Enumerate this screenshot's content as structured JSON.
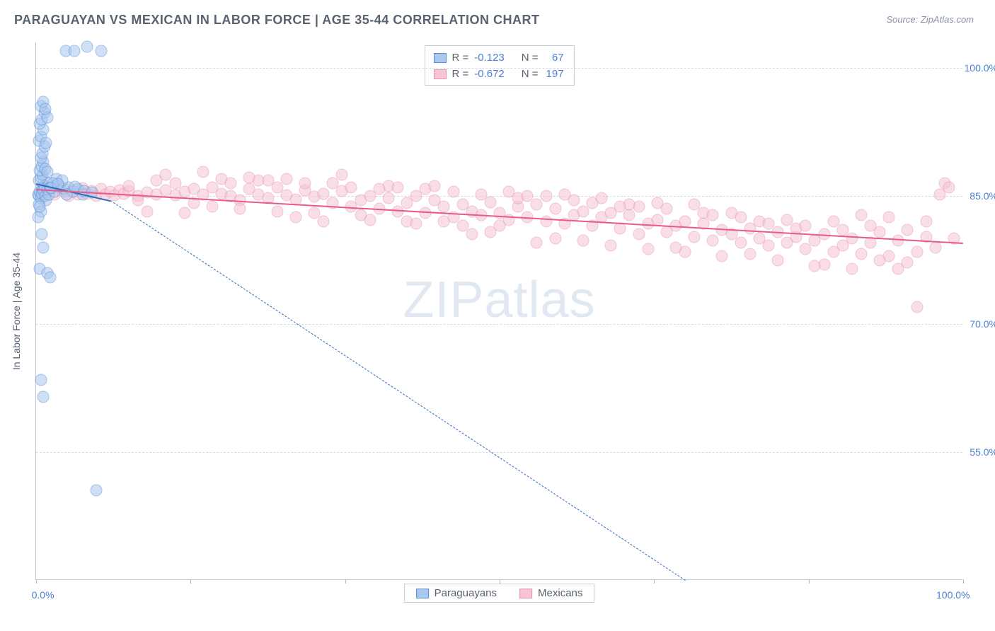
{
  "title": "PARAGUAYAN VS MEXICAN IN LABOR FORCE | AGE 35-44 CORRELATION CHART",
  "source": "Source: ZipAtlas.com",
  "watermark_a": "ZIP",
  "watermark_b": "atlas",
  "ylabel": "In Labor Force | Age 35-44",
  "chart": {
    "type": "scatter",
    "xlim": [
      0,
      100
    ],
    "ylim": [
      40,
      103
    ],
    "background_color": "#ffffff",
    "grid_color": "#d8dce2",
    "axis_color": "#c0c5cf",
    "tick_color": "#b0b5bf",
    "xtick_positions": [
      0,
      16.67,
      33.33,
      50,
      66.67,
      83.33,
      100
    ],
    "xtick_labels": {
      "0": "0.0%",
      "100": "100.0%"
    },
    "ytick_positions": [
      55,
      70,
      85,
      100
    ],
    "ytick_labels": {
      "55": "55.0%",
      "70": "70.0%",
      "85": "85.0%",
      "100": "100.0%"
    },
    "label_color": "#4a7fd4",
    "axis_label_color": "#5a6270",
    "title_color": "#5a6270",
    "title_fontsize": 18,
    "label_fontsize": 14,
    "marker_radius": 8.5,
    "marker_opacity": 0.55
  },
  "series": {
    "paraguayans": {
      "label": "Paraguayans",
      "r": "-0.123",
      "n": "67",
      "fill": "#a9c7ef",
      "stroke": "#5a8fd6",
      "trend_color": "#2f6bbd",
      "trend_solid": {
        "x1": 0,
        "y1": 86.5,
        "x2": 8,
        "y2": 84.5
      },
      "trend_dashed": {
        "x1": 8,
        "y1": 84.5,
        "x2": 70,
        "y2": 40
      },
      "points": [
        [
          0.2,
          85.2
        ],
        [
          0.3,
          85.0
        ],
        [
          0.4,
          85.5
        ],
        [
          0.5,
          84.8
        ],
        [
          0.6,
          85.3
        ],
        [
          0.7,
          86.0
        ],
        [
          0.8,
          85.7
        ],
        [
          0.9,
          86.2
        ],
        [
          1.0,
          85.0
        ],
        [
          1.1,
          84.5
        ],
        [
          1.2,
          85.8
        ],
        [
          1.3,
          86.5
        ],
        [
          1.4,
          85.2
        ],
        [
          1.5,
          86.0
        ],
        [
          0.3,
          86.8
        ],
        [
          0.5,
          87.2
        ],
        [
          0.7,
          87.5
        ],
        [
          0.4,
          88.0
        ],
        [
          0.6,
          88.5
        ],
        [
          0.8,
          89.0
        ],
        [
          1.0,
          88.2
        ],
        [
          1.2,
          87.8
        ],
        [
          0.5,
          89.5
        ],
        [
          0.7,
          90.0
        ],
        [
          0.9,
          90.8
        ],
        [
          0.3,
          91.5
        ],
        [
          0.5,
          92.0
        ],
        [
          0.8,
          92.8
        ],
        [
          1.1,
          91.2
        ],
        [
          0.4,
          93.5
        ],
        [
          0.6,
          94.0
        ],
        [
          0.9,
          94.8
        ],
        [
          1.2,
          94.2
        ],
        [
          0.5,
          95.5
        ],
        [
          0.8,
          96.0
        ],
        [
          1.0,
          95.2
        ],
        [
          3.2,
          102.0
        ],
        [
          4.1,
          102.0
        ],
        [
          5.5,
          102.5
        ],
        [
          7.0,
          102.0
        ],
        [
          0.3,
          84.0
        ],
        [
          0.5,
          83.2
        ],
        [
          0.2,
          82.5
        ],
        [
          0.4,
          83.8
        ],
        [
          0.6,
          80.5
        ],
        [
          0.8,
          79.0
        ],
        [
          0.4,
          76.5
        ],
        [
          1.2,
          76.0
        ],
        [
          1.5,
          75.5
        ],
        [
          0.5,
          63.5
        ],
        [
          0.8,
          61.5
        ],
        [
          6.5,
          50.5
        ],
        [
          2.0,
          85.5
        ],
        [
          2.5,
          86.2
        ],
        [
          3.0,
          85.8
        ],
        [
          3.5,
          86.0
        ],
        [
          4.0,
          85.5
        ],
        [
          4.5,
          85.8
        ],
        [
          5.0,
          85.2
        ],
        [
          2.2,
          87.0
        ],
        [
          1.8,
          86.5
        ],
        [
          2.8,
          86.8
        ],
        [
          3.3,
          85.2
        ],
        [
          1.6,
          85.9
        ],
        [
          2.4,
          86.4
        ],
        [
          4.2,
          86.1
        ],
        [
          5.2,
          85.6
        ],
        [
          6.0,
          85.4
        ]
      ]
    },
    "mexicans": {
      "label": "Mexicans",
      "r": "-0.672",
      "n": "197",
      "fill": "#f6c4d2",
      "stroke": "#e795ae",
      "trend_color": "#e75a8a",
      "trend_solid": {
        "x1": 0,
        "y1": 85.8,
        "x2": 100,
        "y2": 79.5
      },
      "points": [
        [
          0.5,
          85.5
        ],
        [
          1,
          85.3
        ],
        [
          1.5,
          85.8
        ],
        [
          2,
          85.2
        ],
        [
          2.5,
          86.0
        ],
        [
          3,
          85.5
        ],
        [
          3.5,
          85.0
        ],
        [
          4,
          85.7
        ],
        [
          4.5,
          85.2
        ],
        [
          5,
          85.9
        ],
        [
          5.5,
          85.3
        ],
        [
          6,
          85.6
        ],
        [
          6.5,
          85.0
        ],
        [
          7,
          85.8
        ],
        [
          7.5,
          85.2
        ],
        [
          8,
          85.5
        ],
        [
          8.5,
          85.1
        ],
        [
          9,
          85.7
        ],
        [
          9.5,
          85.3
        ],
        [
          10,
          85.6
        ],
        [
          11,
          85.0
        ],
        [
          12,
          85.4
        ],
        [
          13,
          85.2
        ],
        [
          14,
          85.7
        ],
        [
          15,
          85.1
        ],
        [
          16,
          85.5
        ],
        [
          17,
          85.8
        ],
        [
          18,
          85.2
        ],
        [
          19,
          86.0
        ],
        [
          20,
          85.3
        ],
        [
          21,
          85.0
        ],
        [
          22,
          84.5
        ],
        [
          23,
          85.8
        ],
        [
          24,
          85.2
        ],
        [
          25,
          84.8
        ],
        [
          26,
          86.0
        ],
        [
          27,
          85.1
        ],
        [
          28,
          84.6
        ],
        [
          29,
          85.7
        ],
        [
          30,
          84.9
        ],
        [
          31,
          85.3
        ],
        [
          32,
          84.2
        ],
        [
          33,
          85.6
        ],
        [
          34,
          83.8
        ],
        [
          35,
          84.5
        ],
        [
          36,
          85.0
        ],
        [
          37,
          83.5
        ],
        [
          38,
          84.8
        ],
        [
          39,
          83.2
        ],
        [
          40,
          84.2
        ],
        [
          41,
          85.0
        ],
        [
          42,
          83.0
        ],
        [
          43,
          84.5
        ],
        [
          44,
          83.8
        ],
        [
          45,
          82.5
        ],
        [
          46,
          84.0
        ],
        [
          47,
          83.2
        ],
        [
          48,
          82.8
        ],
        [
          49,
          84.3
        ],
        [
          50,
          83.0
        ],
        [
          51,
          82.2
        ],
        [
          52,
          83.8
        ],
        [
          53,
          82.5
        ],
        [
          54,
          84.0
        ],
        [
          55,
          82.0
        ],
        [
          56,
          83.5
        ],
        [
          57,
          81.8
        ],
        [
          58,
          82.8
        ],
        [
          59,
          83.2
        ],
        [
          60,
          81.5
        ],
        [
          61,
          82.5
        ],
        [
          62,
          83.0
        ],
        [
          63,
          81.2
        ],
        [
          64,
          82.8
        ],
        [
          65,
          80.5
        ],
        [
          66,
          81.8
        ],
        [
          67,
          82.2
        ],
        [
          68,
          80.8
        ],
        [
          69,
          81.5
        ],
        [
          70,
          82.0
        ],
        [
          71,
          80.2
        ],
        [
          72,
          81.8
        ],
        [
          73,
          79.8
        ],
        [
          74,
          81.0
        ],
        [
          75,
          80.5
        ],
        [
          76,
          79.5
        ],
        [
          77,
          81.2
        ],
        [
          78,
          80.0
        ],
        [
          79,
          79.2
        ],
        [
          80,
          80.8
        ],
        [
          81,
          79.5
        ],
        [
          82,
          80.2
        ],
        [
          83,
          78.8
        ],
        [
          84,
          79.8
        ],
        [
          85,
          80.5
        ],
        [
          86,
          78.5
        ],
        [
          87,
          79.2
        ],
        [
          88,
          80.0
        ],
        [
          89,
          78.2
        ],
        [
          90,
          79.5
        ],
        [
          91,
          80.8
        ],
        [
          92,
          78.0
        ],
        [
          93,
          79.8
        ],
        [
          94,
          81.0
        ],
        [
          95,
          78.5
        ],
        [
          96,
          80.2
        ],
        [
          97,
          79.0
        ],
        [
          98,
          86.5
        ],
        [
          98.5,
          86.0
        ],
        [
          97.5,
          85.2
        ],
        [
          10,
          86.2
        ],
        [
          15,
          86.5
        ],
        [
          20,
          87.0
        ],
        [
          25,
          86.8
        ],
        [
          30,
          83.0
        ],
        [
          35,
          82.8
        ],
        [
          40,
          82.0
        ],
        [
          45,
          85.5
        ],
        [
          50,
          81.5
        ],
        [
          55,
          85.0
        ],
        [
          60,
          84.2
        ],
        [
          65,
          83.8
        ],
        [
          70,
          78.5
        ],
        [
          75,
          83.0
        ],
        [
          80,
          77.5
        ],
        [
          85,
          77.0
        ],
        [
          90,
          81.5
        ],
        [
          95,
          72.0
        ],
        [
          93,
          76.5
        ],
        [
          22,
          83.5
        ],
        [
          24,
          86.8
        ],
        [
          26,
          83.2
        ],
        [
          28,
          82.5
        ],
        [
          32,
          86.5
        ],
        [
          34,
          86.0
        ],
        [
          36,
          82.2
        ],
        [
          38,
          86.2
        ],
        [
          42,
          85.8
        ],
        [
          44,
          82.0
        ],
        [
          46,
          81.5
        ],
        [
          48,
          85.2
        ],
        [
          52,
          84.8
        ],
        [
          54,
          79.5
        ],
        [
          56,
          80.0
        ],
        [
          58,
          84.5
        ],
        [
          62,
          79.2
        ],
        [
          64,
          84.0
        ],
        [
          66,
          78.8
        ],
        [
          68,
          83.5
        ],
        [
          72,
          83.0
        ],
        [
          74,
          78.0
        ],
        [
          76,
          82.5
        ],
        [
          78,
          82.0
        ],
        [
          82,
          81.2
        ],
        [
          84,
          76.8
        ],
        [
          86,
          82.0
        ],
        [
          88,
          76.5
        ],
        [
          92,
          82.5
        ],
        [
          94,
          77.2
        ],
        [
          11,
          84.5
        ],
        [
          13,
          86.8
        ],
        [
          17,
          84.2
        ],
        [
          19,
          83.8
        ],
        [
          21,
          86.5
        ],
        [
          23,
          87.2
        ],
        [
          27,
          87.0
        ],
        [
          29,
          86.5
        ],
        [
          31,
          82.0
        ],
        [
          33,
          87.5
        ],
        [
          37,
          85.8
        ],
        [
          39,
          86.0
        ],
        [
          41,
          81.8
        ],
        [
          43,
          86.2
        ],
        [
          47,
          80.5
        ],
        [
          49,
          80.8
        ],
        [
          51,
          85.5
        ],
        [
          53,
          85.0
        ],
        [
          57,
          85.2
        ],
        [
          59,
          79.8
        ],
        [
          61,
          84.8
        ],
        [
          63,
          83.8
        ],
        [
          67,
          84.2
        ],
        [
          69,
          79.0
        ],
        [
          71,
          84.0
        ],
        [
          73,
          82.8
        ],
        [
          77,
          78.2
        ],
        [
          79,
          81.8
        ],
        [
          81,
          82.2
        ],
        [
          83,
          81.5
        ],
        [
          87,
          81.0
        ],
        [
          89,
          82.8
        ],
        [
          91,
          77.5
        ],
        [
          96,
          82.0
        ],
        [
          99,
          80.0
        ],
        [
          12,
          83.2
        ],
        [
          14,
          87.5
        ],
        [
          16,
          83.0
        ],
        [
          18,
          87.8
        ]
      ]
    }
  },
  "stats_labels": {
    "r": "R =",
    "n": "N ="
  },
  "legend": {
    "series1": "paraguayans",
    "series2": "mexicans"
  }
}
